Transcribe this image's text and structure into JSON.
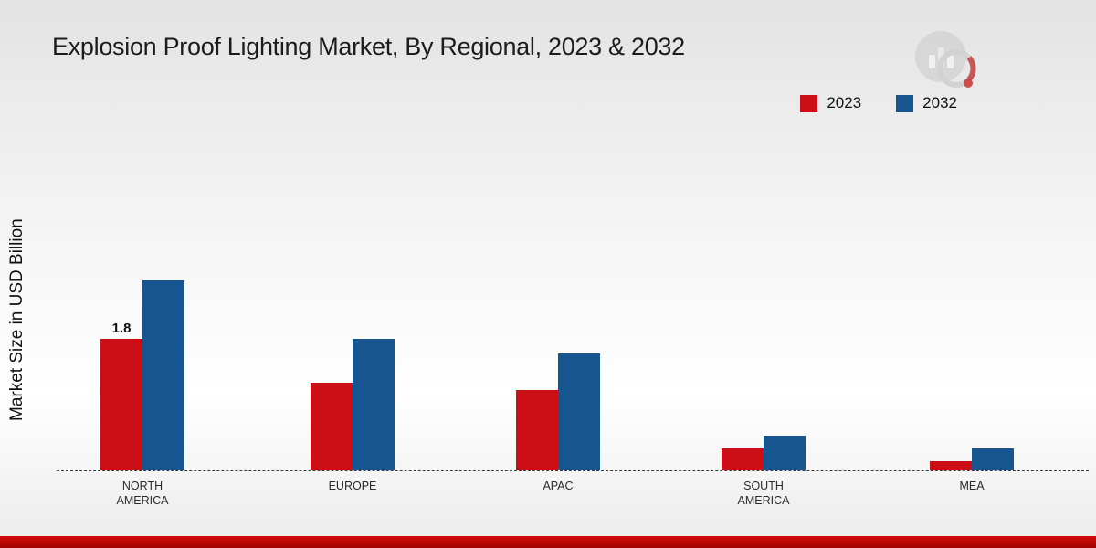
{
  "title": "Explosion Proof Lighting Market, By Regional, 2023 & 2032",
  "ylabel": "Market Size in USD Billion",
  "chart_data": {
    "type": "bar",
    "categories": [
      "NORTH AMERICA",
      "EUROPE",
      "APAC",
      "SOUTH AMERICA",
      "MEA"
    ],
    "series": [
      {
        "name": "2023",
        "color": "#cc0f16",
        "values": [
          1.8,
          1.2,
          1.1,
          0.3,
          0.13
        ]
      },
      {
        "name": "2032",
        "color": "#16558f",
        "values": [
          2.6,
          1.8,
          1.6,
          0.48,
          0.3
        ]
      }
    ],
    "annotations": [
      {
        "series": "2023",
        "category_index": 0,
        "text": "1.8"
      }
    ],
    "title": "Explosion Proof Lighting Market, By Regional, 2023 & 2032",
    "xlabel": "",
    "ylabel": "Market Size in USD Billion",
    "ylim": [
      0,
      3
    ],
    "grid": false,
    "legend_position": "top-right",
    "baseline": "dashed"
  },
  "colors": {
    "series_2023": "#cc0f16",
    "series_2032": "#16558f",
    "bottom_strip": "#c00505",
    "background_top": "#e3e3e3"
  }
}
